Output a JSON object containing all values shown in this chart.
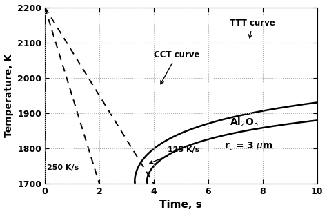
{
  "xlim": [
    0,
    10
  ],
  "ylim": [
    1700,
    2200
  ],
  "xticks": [
    0,
    2,
    4,
    6,
    8,
    10
  ],
  "yticks": [
    1700,
    1800,
    1900,
    2000,
    2100,
    2200
  ],
  "xlabel": "Time, s",
  "ylabel": "Temperature, K",
  "background_color": "#ffffff",
  "grid_color": "#aaaaaa",
  "label_TTT": "TTT curve",
  "label_CCT": "CCT curve",
  "label_250": "250 K/s",
  "label_125": "125 K/s",
  "cooling_250_t": [
    0.0,
    2.0
  ],
  "cooling_250_T": [
    2200,
    1700
  ],
  "cooling_125_t": [
    0.0,
    4.0
  ],
  "cooling_125_T": [
    2200,
    1700
  ],
  "TTT_nose_t": 3.3,
  "TTT_nose_T": 1705,
  "TTT_plateau_T": 2105,
  "CCT_nose_t": 3.75,
  "CCT_nose_T": 1705,
  "CCT_plateau_T": 2020
}
